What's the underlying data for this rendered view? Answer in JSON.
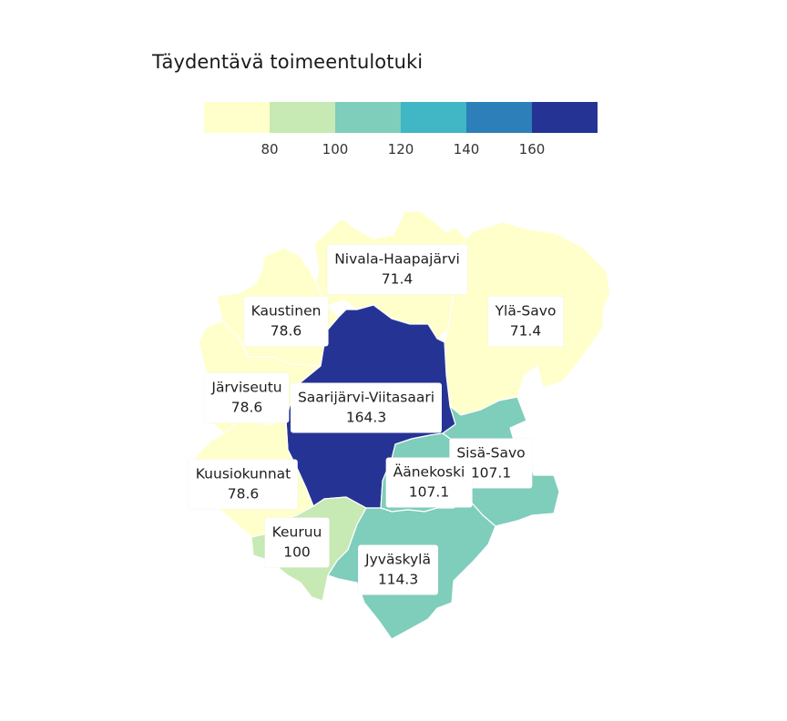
{
  "title": "Täydentävä toimeentulotuki",
  "legend": {
    "colors": [
      "#ffffcc",
      "#c7e9b4",
      "#7fcdbb",
      "#41b6c4",
      "#2c7fb8",
      "#253494"
    ],
    "ticks": [
      "80",
      "100",
      "120",
      "140",
      "160"
    ]
  },
  "regions": [
    {
      "id": "nivala-haapajarvi",
      "name": "Nivala-Haapajärvi",
      "value": "71.4",
      "color": "#ffffcc"
    },
    {
      "id": "kaustinen",
      "name": "Kaustinen",
      "value": "78.6",
      "color": "#ffffcc"
    },
    {
      "id": "yla-savo",
      "name": "Ylä-Savo",
      "value": "71.4",
      "color": "#ffffcc"
    },
    {
      "id": "jarviseutu",
      "name": "Järviseutu",
      "value": "78.6",
      "color": "#ffffcc"
    },
    {
      "id": "saarijarvi-viitasaari",
      "name": "Saarijärvi-Viitasaari",
      "value": "164.3",
      "color": "#253494"
    },
    {
      "id": "sisa-savo",
      "name": "Sisä-Savo",
      "value": "107.1",
      "color": "#7fcdbb"
    },
    {
      "id": "aanekoski",
      "name": "Äänekoski",
      "value": "107.1",
      "color": "#7fcdbb"
    },
    {
      "id": "kuusiokunnat",
      "name": "Kuusiokunnat",
      "value": "78.6",
      "color": "#ffffcc"
    },
    {
      "id": "keuruu",
      "name": "Keuruu",
      "value": "100",
      "color": "#c7e9b4"
    },
    {
      "id": "jyvaskyla",
      "name": "Jyväskylä",
      "value": "114.3",
      "color": "#7fcdbb"
    }
  ]
}
